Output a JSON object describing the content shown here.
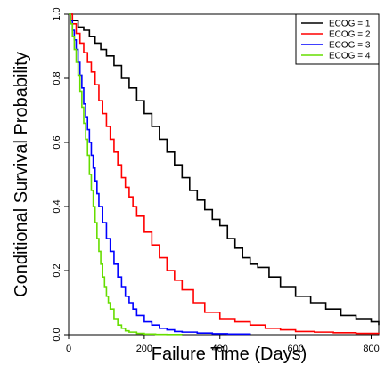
{
  "chart_data": {
    "type": "line",
    "title": "",
    "xlabel": "Failure Time (Days)",
    "ylabel": "Conditional Survival Probability",
    "xlim": [
      0,
      820
    ],
    "ylim": [
      0,
      1.0
    ],
    "x_ticks": [
      0,
      200,
      400,
      600,
      800
    ],
    "y_ticks": [
      0.0,
      0.2,
      0.4,
      0.6,
      0.8,
      1.0
    ],
    "x_tick_labels": [
      "0",
      "200",
      "400",
      "600",
      "800"
    ],
    "y_tick_labels": [
      "0.0",
      "0.2",
      "0.4",
      "0.6",
      "0.8",
      "1.0"
    ],
    "legend_position": "top-right",
    "series": [
      {
        "name": "ECOG = 1",
        "color": "#000000",
        "x": [
          0,
          10,
          25,
          40,
          55,
          70,
          85,
          100,
          120,
          140,
          160,
          180,
          200,
          220,
          240,
          260,
          280,
          300,
          320,
          340,
          360,
          380,
          400,
          420,
          440,
          460,
          480,
          500,
          530,
          560,
          600,
          640,
          680,
          720,
          760,
          800,
          820
        ],
        "y": [
          1.0,
          0.98,
          0.96,
          0.95,
          0.93,
          0.91,
          0.89,
          0.87,
          0.84,
          0.8,
          0.77,
          0.73,
          0.69,
          0.65,
          0.61,
          0.57,
          0.53,
          0.49,
          0.45,
          0.42,
          0.39,
          0.36,
          0.34,
          0.3,
          0.27,
          0.24,
          0.22,
          0.21,
          0.18,
          0.15,
          0.12,
          0.1,
          0.08,
          0.06,
          0.05,
          0.04,
          0.03
        ]
      },
      {
        "name": "ECOG = 2",
        "color": "#ff0000",
        "x": [
          0,
          10,
          20,
          30,
          40,
          50,
          60,
          70,
          80,
          90,
          100,
          110,
          120,
          130,
          140,
          150,
          160,
          170,
          180,
          200,
          220,
          240,
          260,
          280,
          300,
          330,
          360,
          400,
          440,
          480,
          520,
          560,
          600,
          650,
          700,
          760,
          820
        ],
        "y": [
          1.0,
          0.97,
          0.94,
          0.91,
          0.88,
          0.85,
          0.82,
          0.78,
          0.73,
          0.69,
          0.65,
          0.61,
          0.57,
          0.53,
          0.49,
          0.46,
          0.43,
          0.4,
          0.37,
          0.32,
          0.28,
          0.24,
          0.2,
          0.17,
          0.14,
          0.1,
          0.07,
          0.05,
          0.04,
          0.03,
          0.02,
          0.015,
          0.01,
          0.008,
          0.006,
          0.004,
          0.003
        ]
      },
      {
        "name": "ECOG = 3",
        "color": "#0000ff",
        "x": [
          0,
          5,
          10,
          15,
          20,
          25,
          30,
          35,
          40,
          45,
          50,
          55,
          60,
          65,
          70,
          75,
          80,
          90,
          100,
          110,
          120,
          130,
          140,
          150,
          160,
          170,
          180,
          200,
          220,
          240,
          260,
          280,
          300,
          340,
          380,
          420,
          480
        ],
        "y": [
          1.0,
          0.98,
          0.95,
          0.92,
          0.89,
          0.85,
          0.81,
          0.77,
          0.72,
          0.68,
          0.64,
          0.6,
          0.56,
          0.52,
          0.48,
          0.44,
          0.4,
          0.35,
          0.3,
          0.26,
          0.22,
          0.18,
          0.15,
          0.12,
          0.1,
          0.08,
          0.06,
          0.04,
          0.03,
          0.02,
          0.015,
          0.01,
          0.008,
          0.005,
          0.003,
          0.002,
          0.001
        ]
      },
      {
        "name": "ECOG = 4",
        "color": "#66dd00",
        "x": [
          0,
          5,
          10,
          15,
          20,
          25,
          30,
          35,
          40,
          45,
          50,
          55,
          60,
          65,
          70,
          75,
          80,
          85,
          90,
          95,
          100,
          105,
          110,
          120,
          130,
          140,
          150,
          160,
          180,
          200,
          230,
          260,
          300
        ],
        "y": [
          1.0,
          0.97,
          0.93,
          0.89,
          0.85,
          0.81,
          0.76,
          0.71,
          0.66,
          0.61,
          0.56,
          0.5,
          0.45,
          0.4,
          0.35,
          0.3,
          0.26,
          0.22,
          0.18,
          0.15,
          0.12,
          0.1,
          0.08,
          0.05,
          0.03,
          0.02,
          0.012,
          0.008,
          0.004,
          0.002,
          0.001,
          0.0005,
          0.0002
        ]
      }
    ]
  }
}
